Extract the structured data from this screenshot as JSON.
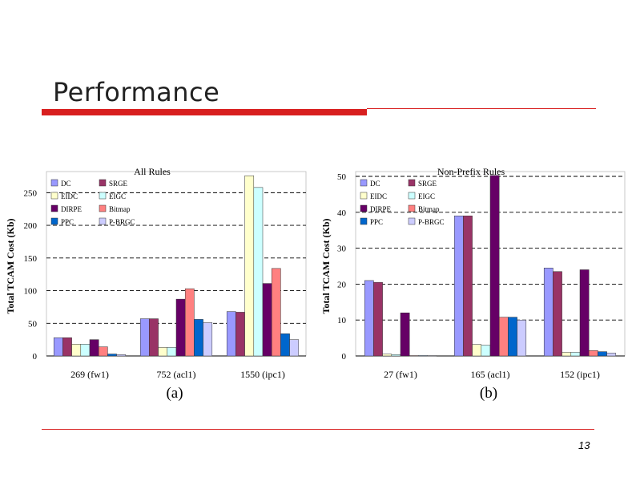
{
  "slide": {
    "title": "Performance",
    "page_number": "13"
  },
  "colors": {
    "DC": "#9999ff",
    "SRGE": "#993366",
    "EIDC": "#ffffcc",
    "EIGC": "#ccffff",
    "DIRPE": "#660066",
    "Bitmap": "#ff8080",
    "PPC": "#0066cc",
    "P-BRGC": "#ccccff"
  },
  "legend_labels": [
    "DC",
    "SRGE",
    "EIDC",
    "EIGC",
    "DIRPE",
    "Bitmap",
    "PPC",
    "P-BRGC"
  ],
  "chart_data": [
    {
      "type": "bar",
      "title": "All Rules",
      "panel_label": "(a)",
      "ylabel": "Total TCAM Cost (Kb)",
      "xlabel": "",
      "ylim": [
        0,
        275
      ],
      "yticks": [
        0,
        50,
        100,
        150,
        200,
        250
      ],
      "grid": "horizontal dashed",
      "legend_position": "top-left",
      "categories": [
        "269 (fw1)",
        "752 (acl1)",
        "1550 (ipc1)"
      ],
      "series": [
        {
          "name": "DC",
          "values": [
            28,
            57,
            68
          ]
        },
        {
          "name": "SRGE",
          "values": [
            28,
            57,
            67
          ]
        },
        {
          "name": "EIDC",
          "values": [
            18,
            13,
            276
          ]
        },
        {
          "name": "EIGC",
          "values": [
            18,
            13,
            258
          ]
        },
        {
          "name": "DIRPE",
          "values": [
            25,
            87,
            111
          ]
        },
        {
          "name": "Bitmap",
          "values": [
            14,
            103,
            134
          ]
        },
        {
          "name": "PPC",
          "values": [
            3,
            56,
            34
          ]
        },
        {
          "name": "P-BRGC",
          "values": [
            2,
            51,
            25
          ]
        }
      ]
    },
    {
      "type": "bar",
      "title": "Non-Prefix Rules",
      "panel_label": "(b)",
      "ylabel": "Total TCAM Cost (Kb)",
      "xlabel": "",
      "ylim": [
        0,
        50
      ],
      "yticks": [
        0,
        10,
        20,
        30,
        40,
        50
      ],
      "grid": "horizontal dashed",
      "legend_position": "top-left",
      "categories": [
        "27 (fw1)",
        "165 (acl1)",
        "152 (ipc1)"
      ],
      "series": [
        {
          "name": "DC",
          "values": [
            21,
            39,
            24.5
          ]
        },
        {
          "name": "SRGE",
          "values": [
            20.5,
            39,
            23.5
          ]
        },
        {
          "name": "EIDC",
          "values": [
            0.5,
            3.2,
            1
          ]
        },
        {
          "name": "EIGC",
          "values": [
            0.4,
            3,
            1
          ]
        },
        {
          "name": "DIRPE",
          "values": [
            12,
            51,
            24
          ]
        },
        {
          "name": "Bitmap",
          "values": [
            0.1,
            10.8,
            1.5
          ]
        },
        {
          "name": "PPC",
          "values": [
            0.1,
            10.8,
            1.2
          ]
        },
        {
          "name": "P-BRGC",
          "values": [
            0.1,
            10,
            0.8
          ]
        }
      ]
    }
  ]
}
